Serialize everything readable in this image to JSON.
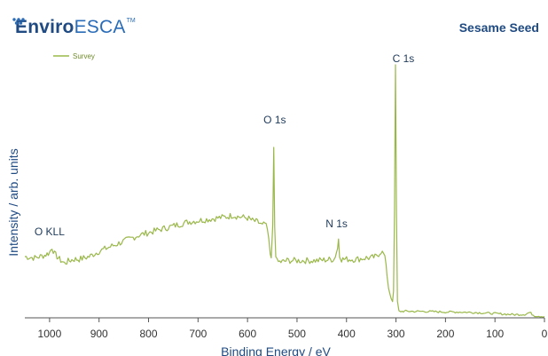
{
  "brand": {
    "name_bold": "Enviro",
    "name_light": "ESCA",
    "tm": "TM",
    "logo_name": "enviroesca-logo",
    "color_dark": "#1f4a82",
    "color_light": "#2a6cb8"
  },
  "sample_title": "Sesame Seed",
  "chart_data": {
    "type": "line",
    "xlabel": "Binding Energy / eV",
    "ylabel": "Intensity / arb. units",
    "xlim": [
      1050,
      0
    ],
    "ylim": [
      0,
      100
    ],
    "x_reversed": true,
    "x_ticks": [
      1000,
      900,
      800,
      700,
      600,
      500,
      400,
      300,
      200,
      100,
      0
    ],
    "y_ticks_shown": false,
    "grid": false,
    "legend_position": "top-left",
    "line_color": "#9ab84a",
    "series": [
      {
        "name": "Survey",
        "points": [
          [
            1050,
            23.0
          ],
          [
            1030,
            22.5
          ],
          [
            1010,
            23.5
          ],
          [
            1000,
            24.5
          ],
          [
            995,
            26.5
          ],
          [
            990,
            24.0
          ],
          [
            980,
            22.0
          ],
          [
            970,
            20.5
          ],
          [
            960,
            21.5
          ],
          [
            950,
            22.0
          ],
          [
            940,
            22.0
          ],
          [
            920,
            23.0
          ],
          [
            900,
            25.0
          ],
          [
            880,
            26.5
          ],
          [
            860,
            28.0
          ],
          [
            840,
            29.5
          ],
          [
            820,
            31.0
          ],
          [
            800,
            32.0
          ],
          [
            780,
            33.0
          ],
          [
            760,
            34.0
          ],
          [
            740,
            35.0
          ],
          [
            720,
            36.0
          ],
          [
            700,
            36.5
          ],
          [
            680,
            37.0
          ],
          [
            660,
            37.5
          ],
          [
            640,
            38.0
          ],
          [
            630,
            38.5
          ],
          [
            620,
            38.0
          ],
          [
            600,
            37.5
          ],
          [
            590,
            36.5
          ],
          [
            580,
            36.0
          ],
          [
            575,
            35.5
          ],
          [
            570,
            34.5
          ],
          [
            565,
            35.5
          ],
          [
            560,
            33.0
          ],
          [
            557,
            29.0
          ],
          [
            554,
            24.0
          ],
          [
            552,
            22.5
          ],
          [
            549,
            35.0
          ],
          [
            547,
            64.0
          ],
          [
            545,
            34.0
          ],
          [
            543,
            24.0
          ],
          [
            540,
            21.0
          ],
          [
            530,
            21.0
          ],
          [
            520,
            21.5
          ],
          [
            500,
            21.5
          ],
          [
            480,
            21.5
          ],
          [
            460,
            21.5
          ],
          [
            440,
            21.8
          ],
          [
            425,
            22.0
          ],
          [
            418,
            26.0
          ],
          [
            416,
            30.0
          ],
          [
            414,
            24.0
          ],
          [
            410,
            22.0
          ],
          [
            400,
            22.0
          ],
          [
            380,
            22.0
          ],
          [
            360,
            22.5
          ],
          [
            350,
            22.5
          ],
          [
            340,
            23.0
          ],
          [
            330,
            25.0
          ],
          [
            325,
            24.0
          ],
          [
            320,
            20.5
          ],
          [
            318,
            16.0
          ],
          [
            315,
            11.5
          ],
          [
            312,
            9.0
          ],
          [
            310,
            7.0
          ],
          [
            307,
            6.0
          ],
          [
            305,
            10.0
          ],
          [
            303,
            40.0
          ],
          [
            301,
            95.0
          ],
          [
            299,
            40.0
          ],
          [
            297,
            6.0
          ],
          [
            294,
            2.5
          ],
          [
            290,
            2.4
          ],
          [
            280,
            2.5
          ],
          [
            260,
            2.4
          ],
          [
            240,
            2.4
          ],
          [
            220,
            2.3
          ],
          [
            200,
            2.2
          ],
          [
            180,
            2.2
          ],
          [
            160,
            2.1
          ],
          [
            140,
            2.0
          ],
          [
            120,
            1.8
          ],
          [
            100,
            1.6
          ],
          [
            80,
            1.4
          ],
          [
            60,
            1.2
          ],
          [
            40,
            1.3
          ],
          [
            30,
            2.0
          ],
          [
            25,
            1.4
          ],
          [
            20,
            0.8
          ],
          [
            0,
            0.5
          ]
        ]
      }
    ],
    "annotations": [
      {
        "text": "C 1s",
        "x": 285,
        "y": 96
      },
      {
        "text": "O 1s",
        "x": 545,
        "y": 73
      },
      {
        "text": "N 1s",
        "x": 420,
        "y": 34
      },
      {
        "text": "O KLL",
        "x": 1000,
        "y": 31
      }
    ]
  }
}
